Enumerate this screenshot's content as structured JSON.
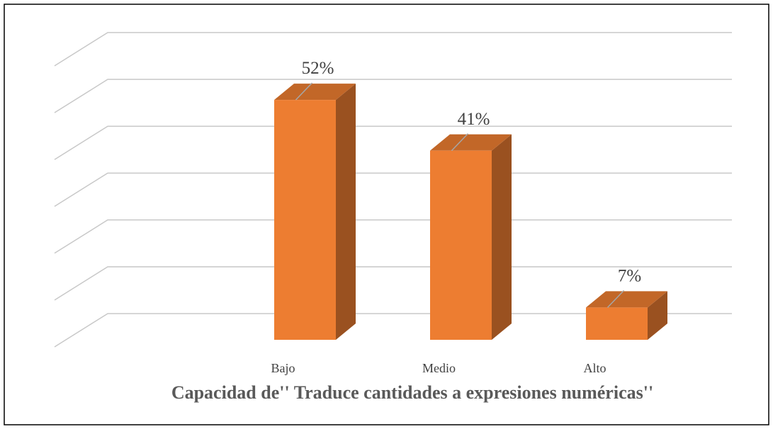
{
  "chart_data": {
    "type": "bar3d",
    "title": "Capacidad de'' Traduce cantidades a expresiones numéricas''",
    "categories": [
      "Bajo",
      "Medio",
      "Alto"
    ],
    "values": [
      52,
      41,
      7
    ],
    "value_labels": [
      "52%",
      "41%",
      "7%"
    ],
    "color": "#ED7D31",
    "ylim": [
      0,
      60
    ],
    "yticks": [
      0,
      10,
      20,
      30,
      40,
      50,
      60
    ],
    "grid": true
  }
}
